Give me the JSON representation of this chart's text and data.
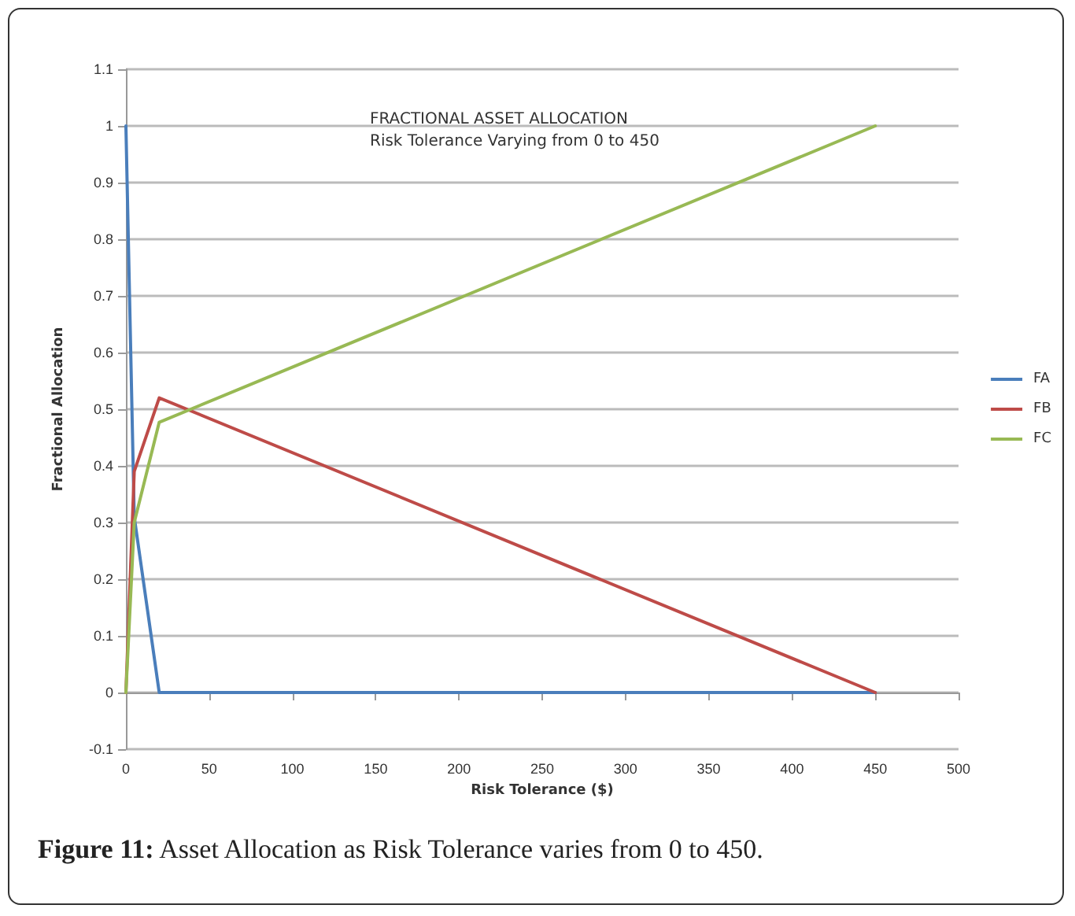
{
  "chart_data": {
    "type": "line",
    "title": "FRACTIONAL ASSET ALLOCATION",
    "subtitle": "Risk Tolerance Varying from 0 to 450",
    "xlabel": "Risk Tolerance ($)",
    "ylabel": "Fractional Allocation",
    "annotations": [
      "Figure 11: Asset Allocation as Risk Tolerance varies from 0 to 450."
    ],
    "x": [
      0,
      5,
      20,
      450
    ],
    "series": [
      {
        "name": "FA",
        "color": "#4a7ebb",
        "values": [
          1,
          0.31,
          0,
          0
        ]
      },
      {
        "name": "FB",
        "color": "#be4b48",
        "values": [
          0,
          0.39,
          0.52,
          0
        ]
      },
      {
        "name": "FC",
        "color": "#98b954",
        "values": [
          0,
          0.3,
          0.477,
          1
        ]
      }
    ],
    "xlim": [
      0,
      500
    ],
    "xticks": [
      0,
      50,
      100,
      150,
      200,
      250,
      300,
      350,
      400,
      450,
      500
    ],
    "ylim": [
      -0.1,
      1.1
    ],
    "yticks": [
      -0.1,
      0,
      0.1,
      0.2,
      0.3,
      0.4,
      0.5,
      0.6,
      0.7,
      0.8,
      0.9,
      1,
      1.1
    ],
    "grid": "y",
    "legend": "right",
    "marker": "none",
    "line_style": "solid"
  }
}
